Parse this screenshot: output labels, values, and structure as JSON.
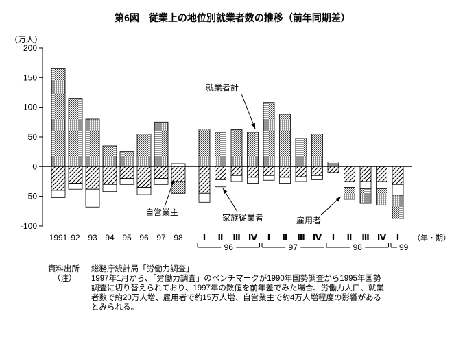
{
  "title": "第6図　従業上の地位別就業者数の推移（前年同期差）",
  "y_axis_unit": "（万人）",
  "x_axis_unit": "（年・期）",
  "chart_data": {
    "type": "bar",
    "stacked": true,
    "unit": "万人",
    "ylim": [
      -100,
      200
    ],
    "yticks": [
      200,
      150,
      100,
      50,
      0,
      -50,
      -100
    ],
    "grid": false,
    "annual_categories": [
      "1991",
      "92",
      "93",
      "94",
      "95",
      "96",
      "97",
      "98"
    ],
    "quarter_categories": [
      "Ⅰ",
      "Ⅱ",
      "Ⅲ",
      "Ⅳ",
      "Ⅰ",
      "Ⅱ",
      "Ⅲ",
      "Ⅳ",
      "Ⅰ",
      "Ⅱ",
      "Ⅲ",
      "Ⅳ",
      "Ⅰ"
    ],
    "quarter_groups": [
      {
        "label": "96",
        "from": 0,
        "to": 3
      },
      {
        "label": "97",
        "from": 4,
        "to": 7
      },
      {
        "label": "98",
        "from": 8,
        "to": 11
      },
      {
        "label": "99",
        "from": 12,
        "to": 12
      }
    ],
    "series": [
      {
        "key": "employees",
        "name": "雇用者",
        "pattern": "dots",
        "values": [
          165,
          115,
          80,
          35,
          25,
          55,
          75,
          -20,
          63,
          58,
          62,
          58,
          108,
          88,
          48,
          55,
          5,
          -20,
          -25,
          -28,
          -40
        ]
      },
      {
        "key": "self_employed",
        "name": "自営業主",
        "pattern": "diagonal",
        "values": [
          -40,
          -28,
          -38,
          -30,
          -20,
          -35,
          -20,
          -25,
          -45,
          -22,
          -15,
          -18,
          -15,
          -18,
          -17,
          -15,
          -10,
          -25,
          -25,
          -25,
          -30
        ]
      },
      {
        "key": "family_workers",
        "name": "家族従業者",
        "pattern": "plain",
        "values": [
          -12,
          -10,
          -30,
          -12,
          -10,
          -12,
          -10,
          5,
          -15,
          -12,
          -10,
          -10,
          -8,
          -10,
          -8,
          -7,
          3,
          -10,
          -12,
          -12,
          -18
        ]
      }
    ],
    "annotations": [
      {
        "label": "就業者計"
      },
      {
        "label": "自営業主"
      },
      {
        "label": "家族従業者"
      },
      {
        "label": "雇用者"
      }
    ]
  },
  "source": {
    "label": "資料出所",
    "text": "総務庁統計局「労働力調査」"
  },
  "note": {
    "label": "（注）",
    "lines": [
      "1997年1月から、「労働力調査」のベンチマークが1990年国勢調査から1995年国勢",
      "調査に切り替えられており、1997年の数値を前年差でみた場合、労働力人口、就業",
      "者数で約20万人増、雇用者で約15万人増、自営業主で約4万人増程度の影響がある",
      "とみられる。"
    ]
  }
}
